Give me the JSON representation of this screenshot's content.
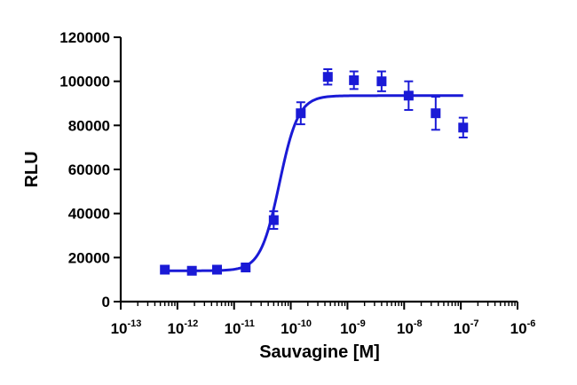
{
  "chart_data": {
    "type": "scatter",
    "title": "",
    "xlabel": "Sauvagine [M]",
    "ylabel": "RLU",
    "x_scale": "log",
    "xlim": [
      1e-13,
      1e-06
    ],
    "ylim": [
      0,
      120000
    ],
    "x_tick_base": "10",
    "x_tick_exponents": [
      "-13",
      "-12",
      "-11",
      "-10",
      "-9",
      "-8",
      "-7",
      "-6"
    ],
    "y_ticks": [
      "0",
      "20000",
      "40000",
      "60000",
      "80000",
      "100000",
      "120000"
    ],
    "grid": false,
    "legend": "none",
    "color": "#1a1ad6",
    "series": [
      {
        "x": [
          6e-13,
          1.8e-12,
          5e-12,
          1.6e-11,
          5e-11,
          1.5e-10,
          4.5e-10,
          1.3e-09,
          4e-09,
          1.2e-08,
          3.6e-08,
          1.1e-07
        ],
        "y": [
          14500,
          14000,
          14500,
          15500,
          37000,
          85500,
          102000,
          100500,
          100000,
          93500,
          85500,
          79000
        ],
        "err": [
          1000,
          1000,
          1000,
          1000,
          4000,
          5000,
          3500,
          4000,
          4500,
          6500,
          7500,
          4500
        ]
      }
    ],
    "fit": {
      "model": "sigmoidal dose-response",
      "bottom": 14000,
      "top": 93500,
      "log_ec50": -10.2,
      "hill_slope": 2.6,
      "x_range": [
        6e-13,
        1.1e-07
      ]
    }
  }
}
